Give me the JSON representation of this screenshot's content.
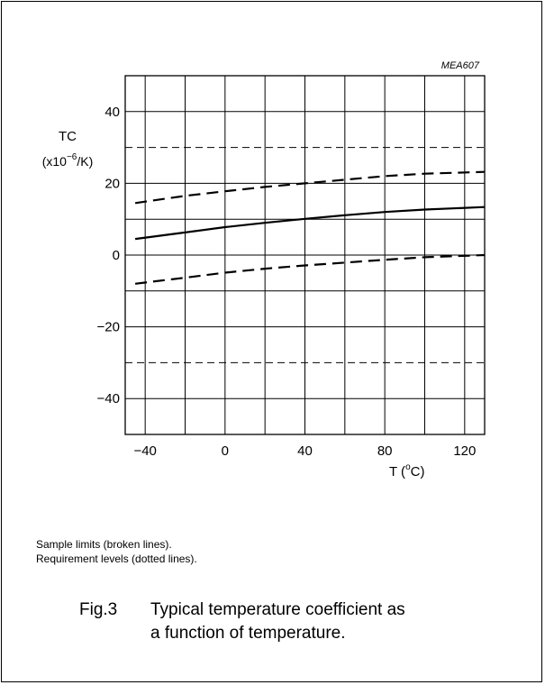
{
  "chart_data": {
    "type": "line",
    "figure_code": "MEA607",
    "ylabel": "TC",
    "yunit_prefix": "(x10",
    "yunit_exp": "−6",
    "yunit_suffix": "/K)",
    "xlabel": "T  (",
    "xunit_sup": "o",
    "xunit_suffix": "C)",
    "xlim": [
      -50,
      130
    ],
    "ylim": [
      -50,
      50
    ],
    "xticks": [
      -40,
      -20,
      0,
      20,
      40,
      60,
      80,
      100,
      120
    ],
    "xtick_labels": [
      "−40",
      "",
      "0",
      "",
      "40",
      "",
      "80",
      "",
      "120"
    ],
    "yticks": [
      -40,
      -30,
      -20,
      -10,
      0,
      10,
      20,
      30,
      40
    ],
    "ytick_labels": [
      "−40",
      "",
      "−20",
      "",
      "0",
      "",
      "20",
      "",
      "40"
    ],
    "requirement_levels": [
      30,
      -30
    ],
    "grid": true,
    "series": [
      {
        "role": "typical",
        "style": "solid",
        "x": [
          -45,
          -20,
          0,
          20,
          40,
          60,
          80,
          100,
          130
        ],
        "y": [
          4.5,
          6.3,
          7.8,
          9.0,
          10.1,
          11.1,
          12.0,
          12.7,
          13.4
        ]
      },
      {
        "role": "upper sample limit",
        "style": "dashed",
        "x": [
          -45,
          -20,
          0,
          20,
          40,
          60,
          80,
          100,
          130
        ],
        "y": [
          14.5,
          16.5,
          17.8,
          19.0,
          20.0,
          21.0,
          22.0,
          22.7,
          23.2
        ]
      },
      {
        "role": "lower sample limit",
        "style": "dashed",
        "x": [
          -45,
          -20,
          0,
          20,
          40,
          60,
          80,
          100,
          130
        ],
        "y": [
          -8.0,
          -6.3,
          -4.9,
          -3.8,
          -2.9,
          -2.1,
          -1.3,
          -0.6,
          0.0
        ]
      }
    ]
  },
  "notes": {
    "line1": "Sample limits (broken lines).",
    "line2": "Requirement levels (dotted lines)."
  },
  "caption": {
    "number": "Fig.3",
    "line1": "Typical temperature coefficient as",
    "line2": "a function of temperature."
  }
}
